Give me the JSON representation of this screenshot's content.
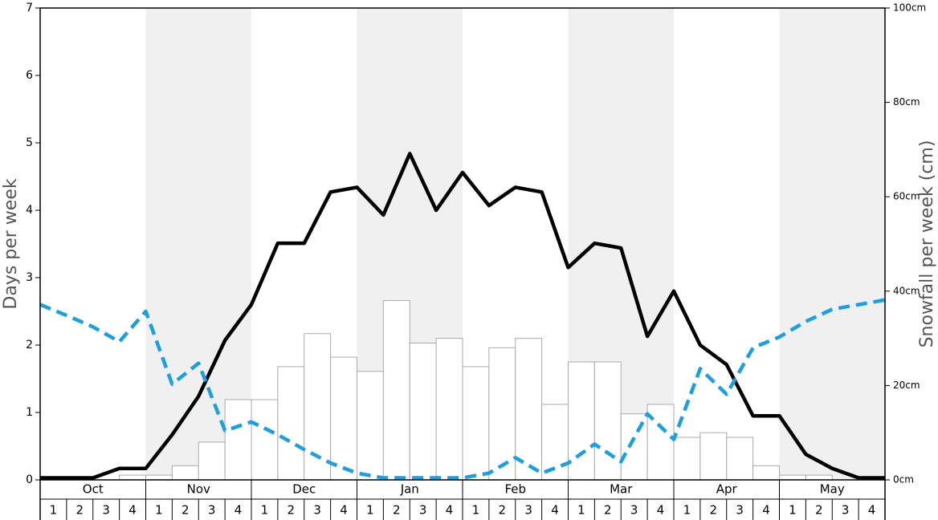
{
  "chart_data": {
    "type": "bar",
    "ylabel": "Days per week",
    "y2label": "Snowfall per week (cm)",
    "months": [
      "Oct",
      "Nov",
      "Dec",
      "Jan",
      "Feb",
      "Mar",
      "Apr",
      "May"
    ],
    "weeks": [
      "1",
      "2",
      "3",
      "4"
    ],
    "ylim": [
      0,
      7
    ],
    "yticks": [
      0,
      1,
      2,
      3,
      4,
      5,
      6,
      7
    ],
    "y2lim": [
      0,
      100
    ],
    "y2ticks": [
      {
        "value": 0,
        "label": "0cm"
      },
      {
        "value": 20,
        "label": "20cm"
      },
      {
        "value": 40,
        "label": "40cm"
      },
      {
        "value": 60,
        "label": "60cm"
      },
      {
        "value": 80,
        "label": "80cm"
      },
      {
        "value": 100,
        "label": "100cm"
      }
    ],
    "bars": {
      "axis": "y2",
      "color": "#ffffff",
      "values": [
        0,
        0,
        0,
        1,
        1,
        3,
        8,
        17,
        17,
        24,
        31,
        26,
        23,
        38,
        29,
        30,
        24,
        28,
        30,
        16,
        25,
        25,
        14,
        16,
        9,
        10,
        9,
        3,
        1,
        1,
        0,
        0
      ]
    },
    "lines": [
      {
        "color": "#000000",
        "dashed": false,
        "values": [
          0.03,
          0.03,
          0.03,
          0.17,
          0.17,
          0.67,
          1.24,
          2.07,
          2.6,
          3.51,
          3.51,
          4.27,
          4.34,
          3.93,
          4.84,
          4.0,
          4.56,
          4.07,
          4.34,
          4.27,
          3.15,
          3.51,
          3.44,
          2.13,
          2.8,
          2.0,
          1.71,
          0.95,
          0.95,
          0.38,
          0.17,
          0.03,
          0.03
        ]
      },
      {
        "color": "#1a9fe0",
        "dashed": true,
        "values": [
          2.6,
          2.44,
          2.27,
          2.05,
          2.5,
          1.42,
          1.73,
          0.73,
          0.86,
          0.67,
          0.45,
          0.25,
          0.1,
          0.03,
          0.03,
          0.03,
          0.03,
          0.1,
          0.33,
          0.1,
          0.25,
          0.53,
          0.27,
          0.98,
          0.6,
          1.65,
          1.27,
          1.96,
          2.12,
          2.35,
          2.53,
          2.6,
          2.67
        ]
      }
    ]
  }
}
